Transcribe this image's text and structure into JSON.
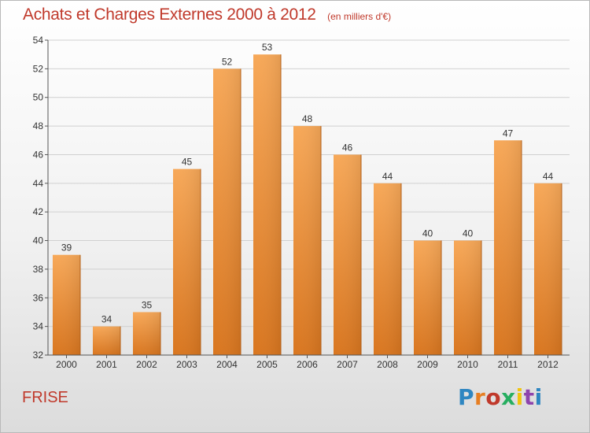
{
  "header": {
    "title": "Achats et Charges Externes 2000 à 2012",
    "unit": "(en milliers d'€)"
  },
  "footer": {
    "commune": "FRISE",
    "logo": "Proxiti",
    "logo_colors": [
      "#2e86c1",
      "#e67e22",
      "#c0392b",
      "#27ae60",
      "#f1c40f",
      "#8e44ad",
      "#2e86c1"
    ]
  },
  "colors": {
    "bar_top": "#f7a858",
    "bar_bottom": "#d9761f",
    "title": "#c0392b"
  },
  "chart_data": {
    "type": "bar",
    "title": "Achats et Charges Externes 2000 à 2012",
    "xlabel": "",
    "ylabel": "",
    "categories": [
      "2000",
      "2001",
      "2002",
      "2003",
      "2004",
      "2005",
      "2006",
      "2007",
      "2008",
      "2009",
      "2010",
      "2011",
      "2012"
    ],
    "values": [
      39,
      34,
      35,
      45,
      52,
      53,
      48,
      46,
      44,
      40,
      40,
      47,
      44
    ],
    "ylim": [
      32,
      54
    ],
    "yticks": [
      32,
      34,
      36,
      38,
      40,
      42,
      44,
      46,
      48,
      50,
      52,
      54
    ],
    "grid": true,
    "data_labels": true
  }
}
